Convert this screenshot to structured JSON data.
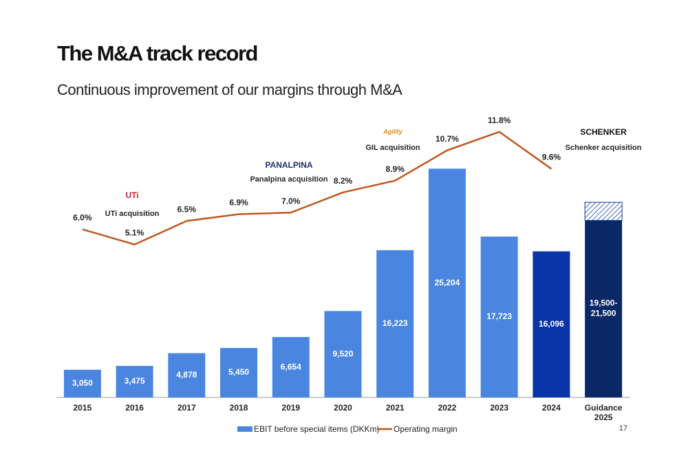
{
  "header": {
    "title": "The M&A track record",
    "subtitle": "Continuous improvement of our margins through M&A"
  },
  "page_number": "17",
  "chart_data": {
    "type": "bar",
    "categories": [
      "2015",
      "2016",
      "2017",
      "2018",
      "2019",
      "2020",
      "2021",
      "2022",
      "2023",
      "2024",
      "Guidance 2025"
    ],
    "series": [
      {
        "name": "EBIT before special items (DKKm)",
        "color": "#4a86e0",
        "colors": [
          "#4a86e0",
          "#4a86e0",
          "#4a86e0",
          "#4a86e0",
          "#4a86e0",
          "#4a86e0",
          "#4a86e0",
          "#4a86e0",
          "#4a86e0",
          "#0a35a8",
          "#0b2866"
        ],
        "values": [
          3050,
          3475,
          4878,
          5450,
          6654,
          9520,
          16223,
          25204,
          17723,
          16096,
          19500
        ],
        "value_labels": [
          "3,050",
          "3,475",
          "4,878",
          "5,450",
          "6,654",
          "9,520",
          "16,223",
          "25,204",
          "17,723",
          "16,096",
          "19,500-21,500"
        ],
        "range_high": [
          null,
          null,
          null,
          null,
          null,
          null,
          null,
          null,
          null,
          null,
          21500
        ]
      },
      {
        "name": "Operating margin",
        "color": "#c0561e",
        "axis": "y2",
        "values": [
          6.0,
          5.1,
          6.5,
          6.9,
          7.0,
          8.2,
          8.9,
          10.7,
          11.8,
          9.6,
          null
        ],
        "value_labels": [
          "6.0%",
          "5.1%",
          "6.5%",
          "6.9%",
          "7.0%",
          "8.2%",
          "8.9%",
          "10.7%",
          "11.8%",
          "9.6%",
          null
        ]
      }
    ],
    "ylim": [
      0,
      30000
    ],
    "y2lim": [
      -4,
      12.2
    ],
    "grid": false,
    "annotations": [
      {
        "logo": "UTi",
        "text": "UTi acquisition"
      },
      {
        "logo": "PANALPINA",
        "text": "Panalpina acquisition"
      },
      {
        "logo": "Agility",
        "text": "GIL acquisition"
      },
      {
        "logo": "SCHENKER",
        "text": "Schenker acquisition"
      }
    ]
  }
}
